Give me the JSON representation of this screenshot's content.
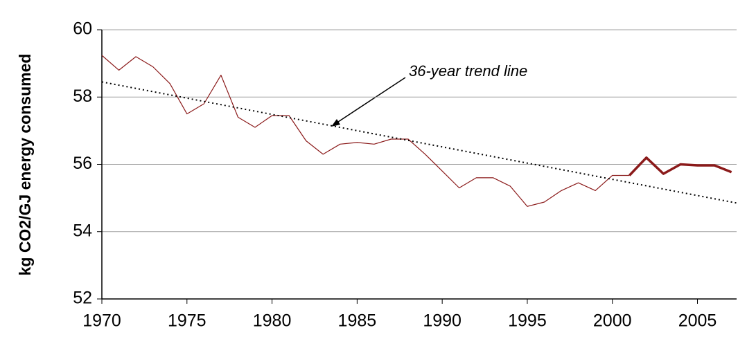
{
  "chart_data": {
    "type": "line",
    "y_label": "kg CO2/GJ energy consumed",
    "annotation": "36-year trend line",
    "xlim": [
      1970,
      2007.3
    ],
    "xticks": [
      1970,
      1975,
      1980,
      1985,
      1990,
      1995,
      2000,
      2005
    ],
    "ylim": [
      52,
      60
    ],
    "yticks": [
      52,
      54,
      56,
      58,
      60
    ],
    "grid": true,
    "series": [
      {
        "color": "#8b1a1a",
        "style": "thin",
        "x": [
          1970,
          1971,
          1972,
          1973,
          1974,
          1975,
          1976,
          1977,
          1978,
          1979,
          1980,
          1981,
          1982,
          1983,
          1984,
          1985,
          1986,
          1987,
          1988,
          1989,
          1990,
          1991,
          1992,
          1993,
          1994,
          1995,
          1996,
          1997,
          1998,
          1999,
          2000,
          2001
        ],
        "values": [
          59.24,
          58.8,
          59.2,
          58.9,
          58.4,
          57.5,
          57.8,
          58.65,
          57.4,
          57.1,
          57.45,
          57.45,
          56.7,
          56.3,
          56.6,
          56.65,
          56.6,
          56.75,
          56.75,
          56.3,
          55.8,
          55.3,
          55.6,
          55.6,
          55.35,
          54.75,
          54.88,
          55.22,
          55.45,
          55.22,
          55.67,
          55.67
        ]
      },
      {
        "color": "#8b1a1a",
        "style": "thick",
        "x": [
          2001,
          2002,
          2003,
          2004,
          2005,
          2006,
          2007
        ],
        "values": [
          55.67,
          56.2,
          55.72,
          56.0,
          55.97,
          55.97,
          55.77
        ]
      },
      {
        "color": "#000000",
        "style": "dotted",
        "x": [
          1970,
          2007.3
        ],
        "values": [
          58.45,
          54.85
        ]
      }
    ]
  }
}
